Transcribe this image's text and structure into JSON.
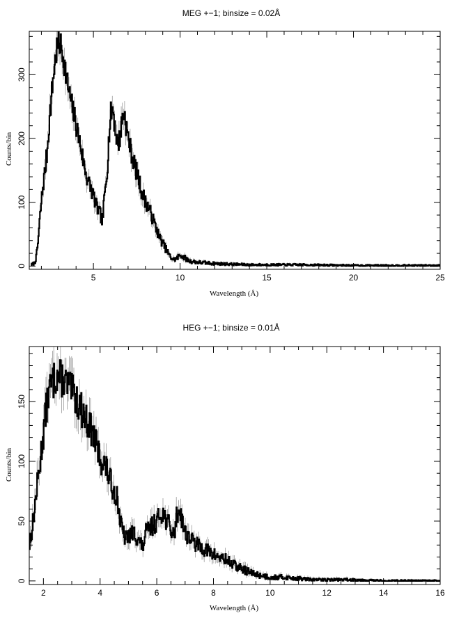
{
  "chart_data": [
    {
      "type": "line",
      "title": "MEG +−1; binsize = 0.02Å",
      "xlabel": "Wavelength (Å)",
      "ylabel": "Counts/bin",
      "xlim": [
        1.3,
        25
      ],
      "ylim": [
        -5,
        368
      ],
      "xticks": [
        5,
        10,
        15,
        20,
        25
      ],
      "yticks": [
        0,
        100,
        200,
        300
      ],
      "grid": false,
      "series": [
        {
          "x": [
            1.4,
            1.6,
            1.7,
            1.8,
            1.9,
            2.0,
            2.1,
            2.2,
            2.3,
            2.4,
            2.5,
            2.6,
            2.7,
            2.8,
            2.9,
            3.0,
            3.1,
            3.2,
            3.3,
            3.4,
            3.5,
            3.6,
            3.8,
            4.0,
            4.2,
            4.4,
            4.6,
            4.8,
            5.0,
            5.2,
            5.4,
            5.5,
            5.6,
            5.7,
            5.8,
            5.9,
            6.0,
            6.1,
            6.2,
            6.3,
            6.4,
            6.5,
            6.6,
            6.7,
            6.8,
            6.9,
            7.0,
            7.2,
            7.4,
            7.6,
            7.8,
            8.0,
            8.2,
            8.4,
            8.6,
            8.8,
            9.0,
            9.2,
            9.4,
            9.6,
            9.8,
            10.0,
            10.5,
            11.0,
            11.5,
            12.0,
            13.0,
            14.0,
            15.0,
            17.0,
            20.0,
            22.5,
            25.0
          ],
          "y": [
            2,
            5,
            15,
            40,
            75,
            105,
            130,
            150,
            175,
            210,
            245,
            275,
            305,
            325,
            345,
            350,
            345,
            335,
            320,
            300,
            285,
            270,
            245,
            220,
            195,
            165,
            140,
            125,
            110,
            90,
            80,
            68,
            100,
            130,
            160,
            210,
            240,
            250,
            225,
            205,
            190,
            200,
            220,
            240,
            235,
            215,
            200,
            175,
            155,
            135,
            115,
            100,
            90,
            75,
            60,
            45,
            35,
            25,
            15,
            10,
            12,
            18,
            8,
            6,
            5,
            4,
            3,
            2,
            2,
            2,
            1,
            1,
            1
          ]
        }
      ]
    },
    {
      "type": "line",
      "title": "HEG +−1; binsize = 0.01Å",
      "xlabel": "Wavelength (Å)",
      "ylabel": "Counts/bin",
      "xlim": [
        1.5,
        16
      ],
      "ylim": [
        -3,
        196
      ],
      "xticks": [
        2,
        4,
        6,
        8,
        10,
        12,
        14,
        16
      ],
      "yticks": [
        0,
        50,
        100,
        150
      ],
      "grid": false,
      "series": [
        {
          "x": [
            1.5,
            1.6,
            1.7,
            1.8,
            1.9,
            2.0,
            2.1,
            2.2,
            2.3,
            2.4,
            2.5,
            2.6,
            2.7,
            2.8,
            2.9,
            3.0,
            3.1,
            3.2,
            3.3,
            3.4,
            3.5,
            3.6,
            3.7,
            3.8,
            3.9,
            4.0,
            4.2,
            4.4,
            4.6,
            4.7,
            4.8,
            4.9,
            5.0,
            5.2,
            5.4,
            5.5,
            5.6,
            5.8,
            6.0,
            6.1,
            6.2,
            6.3,
            6.4,
            6.5,
            6.6,
            6.7,
            6.8,
            6.9,
            7.0,
            7.2,
            7.4,
            7.6,
            7.8,
            8.0,
            8.2,
            8.4,
            8.6,
            8.8,
            9.0,
            9.2,
            9.4,
            9.6,
            9.8,
            10.0,
            10.5,
            11.0,
            11.5,
            12.0,
            13.0,
            14.0,
            15.0,
            16.0
          ],
          "y": [
            30,
            45,
            65,
            85,
            105,
            125,
            145,
            160,
            165,
            170,
            172,
            170,
            168,
            165,
            162,
            158,
            155,
            150,
            145,
            140,
            135,
            130,
            125,
            118,
            110,
            102,
            95,
            80,
            70,
            50,
            40,
            35,
            38,
            40,
            32,
            28,
            40,
            45,
            50,
            55,
            58,
            52,
            48,
            42,
            38,
            55,
            60,
            50,
            40,
            35,
            30,
            28,
            25,
            22,
            20,
            18,
            15,
            12,
            10,
            8,
            6,
            5,
            4,
            3,
            3,
            2,
            1,
            1,
            1,
            0,
            0,
            0
          ]
        }
      ]
    }
  ]
}
